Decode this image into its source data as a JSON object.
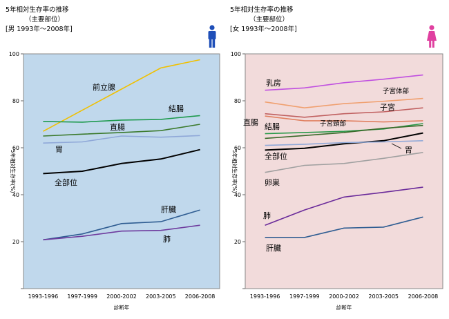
{
  "chart_data": [
    {
      "type": "line",
      "title": "5年相対生存率の推移",
      "subtitle": "（主要部位）",
      "subtitle2": "[男 1993年～2008年]",
      "xlabel": "診断年",
      "ylabel": "5年相対生存率(%)",
      "ylim": [
        0,
        100
      ],
      "yticks": [
        20,
        40,
        60,
        80,
        100
      ],
      "categories": [
        "1993-1996",
        "1997-1999",
        "2000-2002",
        "2003-2005",
        "2006-2008"
      ],
      "background": "#c0d8ec",
      "series": [
        {
          "name": "前立腺",
          "color": "#f0c000",
          "values": [
            67,
            76,
            85,
            94,
            97.5
          ]
        },
        {
          "name": "結腸",
          "color": "#1e9a4e",
          "values": [
            71.2,
            70.9,
            71.8,
            72.1,
            73.7
          ]
        },
        {
          "name": "直腸",
          "color": "#3b7a2c",
          "values": [
            65,
            65.8,
            66.5,
            67.3,
            70
          ]
        },
        {
          "name": "胃",
          "color": "#8fa8d8",
          "values": [
            62,
            62.5,
            65,
            64.5,
            65.2
          ]
        },
        {
          "name": "全部位",
          "color": "#000000",
          "values": [
            49,
            50,
            53.3,
            55.2,
            59.2
          ]
        },
        {
          "name": "肝臓",
          "color": "#2f5d92",
          "values": [
            20.8,
            23.3,
            27.7,
            28.5,
            33.5
          ]
        },
        {
          "name": "肺",
          "color": "#6e3b9e",
          "values": [
            20.8,
            22.3,
            24.5,
            24.8,
            27
          ]
        }
      ]
    },
    {
      "type": "line",
      "title": "5年相対生存率の推移",
      "subtitle": "（主要部位）",
      "subtitle2": "[女 1993年～2008年]",
      "xlabel": "診断年",
      "ylabel": "5年相対生存率(%)",
      "ylim": [
        0,
        100
      ],
      "yticks": [
        20,
        40,
        60,
        80,
        100
      ],
      "categories": [
        "1993-1996",
        "1997-1999",
        "2000-2002",
        "2003-2005",
        "2006-2008"
      ],
      "background": "#f2dbdb",
      "series": [
        {
          "name": "乳房",
          "color": "#c050e0",
          "values": [
            84.5,
            85.5,
            87.7,
            89.2,
            91
          ]
        },
        {
          "name": "子宮体部",
          "color": "#f0a070",
          "values": [
            79.5,
            77,
            78.8,
            79.8,
            81
          ]
        },
        {
          "name": "子宮",
          "color": "#c06060",
          "values": [
            74.5,
            73,
            74.5,
            75.3,
            77
          ]
        },
        {
          "name": "子宮頸部",
          "color": "#e08060",
          "values": [
            73.5,
            71.5,
            71.5,
            71,
            71.5
          ]
        },
        {
          "name": "結腸",
          "color": "#2a9a4a",
          "values": [
            66,
            66.5,
            67,
            68,
            70.3
          ]
        },
        {
          "name": "直腸",
          "color": "#3a6a2a",
          "values": [
            64,
            65.2,
            66.5,
            68.3,
            69.5
          ]
        },
        {
          "name": "全部位",
          "color": "#000000",
          "values": [
            59,
            59.8,
            61.7,
            63,
            66.3
          ]
        },
        {
          "name": "胃",
          "color": "#8fa8d8",
          "values": [
            61,
            61.5,
            62.2,
            62.5,
            63
          ]
        },
        {
          "name": "卵巣",
          "color": "#a0a0a0",
          "values": [
            49.5,
            52.5,
            53.3,
            55.5,
            58
          ]
        },
        {
          "name": "肺",
          "color": "#6a2a9a",
          "values": [
            27,
            33.5,
            39,
            41,
            43.2
          ]
        },
        {
          "name": "肝臓",
          "color": "#2f5d92",
          "values": [
            21.8,
            21.8,
            25.8,
            26.2,
            30.5
          ]
        }
      ]
    }
  ]
}
